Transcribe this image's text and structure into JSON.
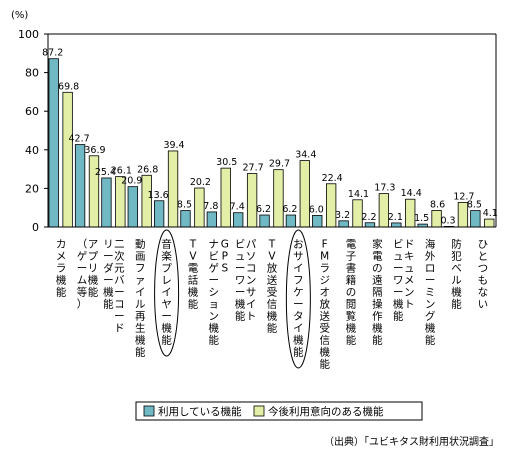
{
  "chart_data": {
    "type": "bar",
    "unit_label": "(%)",
    "ylim": [
      0,
      100
    ],
    "yticks": [
      "0",
      "20",
      "40",
      "60",
      "80",
      "100"
    ],
    "categories": [
      "カメラ機能",
      "アプリ機能（ゲーム等）",
      "二次元バーコードリーダー機能",
      "動画ファイル再生機能",
      "音楽プレイヤー機能",
      "TV電話機能",
      "GPSナビゲーション機能",
      "パソコンサイトビューワー機能",
      "TV放送受信機能",
      "おサイフケータイ機能",
      "FMラジオ放送受信機能",
      "電子書籍の閲覧機能",
      "家電の遠隔操作機能",
      "ドキュメントビューワー機能",
      "海外ローミング機能",
      "防犯ベル機能",
      "ひとつもない"
    ],
    "category_lines": [
      [
        "カメラ機能"
      ],
      [
        "アプリ機能",
        "（ゲーム等）"
      ],
      [
        "二次元バーコード",
        "リーダー機能"
      ],
      [
        "動画ファイル再生機能"
      ],
      [
        "音楽プレイヤー機能"
      ],
      [
        "TV電話機能"
      ],
      [
        "GPS",
        "ナビゲーション機能"
      ],
      [
        "パソコンサイト",
        "ビューワー機能"
      ],
      [
        "TV放送受信機能"
      ],
      [
        "おサイフケータイ機能"
      ],
      [
        "FMラジオ放送受信機能"
      ],
      [
        "電子書籍の閲覧機能"
      ],
      [
        "家電の遠隔操作機能"
      ],
      [
        "ドキュメント",
        "ビューワー機能"
      ],
      [
        "海外ローミング機能"
      ],
      [
        "防犯ベル機能"
      ],
      [
        "ひとつもない"
      ]
    ],
    "series": [
      {
        "name": "利用している機能",
        "color": "#6fb8c4",
        "values": [
          87.2,
          42.7,
          25.4,
          20.9,
          13.6,
          8.5,
          7.8,
          7.4,
          6.2,
          6.2,
          6.0,
          3.2,
          2.2,
          2.1,
          1.5,
          0.3,
          8.5
        ]
      },
      {
        "name": "今後利用意向のある機能",
        "color": "#e3efa6",
        "values": [
          69.8,
          36.9,
          26.1,
          26.8,
          39.4,
          20.2,
          30.5,
          27.7,
          29.7,
          34.4,
          22.4,
          14.1,
          17.3,
          14.4,
          8.6,
          12.7,
          4.1
        ]
      }
    ],
    "highlighted": [
      "音楽プレイヤー機能",
      "おサイフケータイ機能"
    ],
    "legend_position": "bottom",
    "grid": false
  },
  "source": "（出典）「ユビキタス財利用状況調査」"
}
